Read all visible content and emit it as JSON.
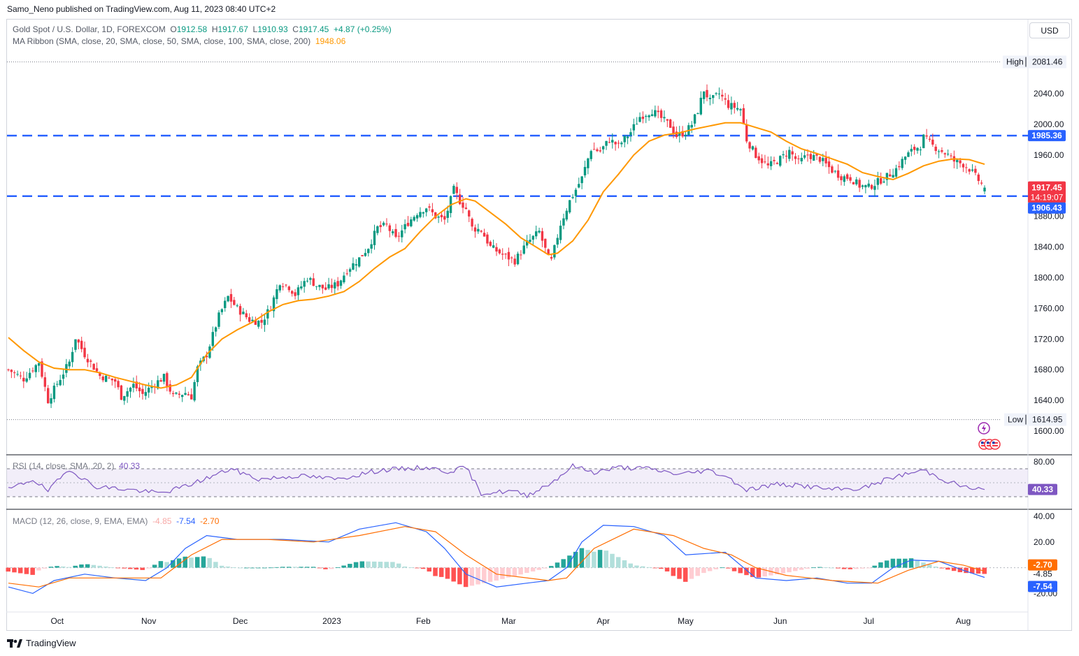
{
  "publisher": "Samo_Neno published on TradingView.com, Aug 11, 2023 08:40 UTC+2",
  "legend": {
    "symbol": "Gold Spot / U.S. Dollar, 1D, FOREXCOM",
    "o_label": "O",
    "o": "1912.58",
    "h_label": "H",
    "h": "1917.67",
    "l_label": "L",
    "l": "1910.93",
    "c_label": "C",
    "c": "1917.45",
    "change": "+4.87 (+0.25%)",
    "ma_name": "MA Ribbon (SMA, close, 20, SMA, close, 50, SMA, close, 100, SMA, close, 200)",
    "ma_value": "1948.06"
  },
  "currency": "USD",
  "rsi_legend": {
    "name": "RSI (14, close, SMA, 20, 2)",
    "value": "40.33"
  },
  "macd_legend": {
    "name": "MACD (12, 26, close, 9, EMA, EMA)",
    "hist": "-4.85",
    "macd": "-7.54",
    "signal": "-2.70"
  },
  "branding": "TradingView",
  "colors": {
    "up": "#089981",
    "down": "#f23645",
    "ma": "#ff9800",
    "hline": "#2962ff",
    "rsi": "#7e57c2",
    "macd": "#2962ff",
    "signal": "#ff6d00"
  },
  "chart_data": {
    "type": "candlestick",
    "price_axis": {
      "ticks": [
        2040,
        2000,
        1960,
        1920,
        1880,
        1840,
        1800,
        1760,
        1720,
        1680,
        1640,
        1600
      ],
      "ylim": [
        1590,
        2095
      ]
    },
    "time_axis": [
      "Oct",
      "Nov",
      "Dec",
      "2023",
      "Feb",
      "Mar",
      "Apr",
      "May",
      "Jun",
      "Jul",
      "Aug"
    ],
    "high": {
      "label": "High",
      "value": 2081.46
    },
    "low": {
      "label": "Low",
      "value": 1614.95
    },
    "horizontal_lines": [
      1985.36,
      1906.43
    ],
    "current_price": {
      "value": "1917.45",
      "countdown": "14:19:07"
    },
    "labels": {
      "high_line": "1985.36",
      "low_line": "1906.43",
      "high": "2081.46",
      "low": "1614.95"
    },
    "close_path": [
      [
        0,
        1680
      ],
      [
        5,
        1668
      ],
      [
        10,
        1690
      ],
      [
        13,
        1640
      ],
      [
        16,
        1662
      ],
      [
        20,
        1690
      ],
      [
        22,
        1722
      ],
      [
        25,
        1700
      ],
      [
        30,
        1672
      ],
      [
        35,
        1665
      ],
      [
        37,
        1645
      ],
      [
        41,
        1660
      ],
      [
        44,
        1648
      ],
      [
        48,
        1662
      ],
      [
        51,
        1670
      ],
      [
        54,
        1645
      ],
      [
        58,
        1650
      ],
      [
        60,
        1645
      ],
      [
        62,
        1682
      ],
      [
        65,
        1700
      ],
      [
        69,
        1750
      ],
      [
        72,
        1775
      ],
      [
        75,
        1760
      ],
      [
        79,
        1745
      ],
      [
        83,
        1742
      ],
      [
        86,
        1762
      ],
      [
        89,
        1795
      ],
      [
        92,
        1788
      ],
      [
        94,
        1778
      ],
      [
        98,
        1800
      ],
      [
        101,
        1790
      ],
      [
        104,
        1785
      ],
      [
        108,
        1792
      ],
      [
        111,
        1810
      ],
      [
        115,
        1825
      ],
      [
        118,
        1840
      ],
      [
        121,
        1865
      ],
      [
        124,
        1868
      ],
      [
        127,
        1850
      ],
      [
        131,
        1872
      ],
      [
        134,
        1885
      ],
      [
        137,
        1892
      ],
      [
        140,
        1880
      ],
      [
        143,
        1875
      ],
      [
        146,
        1915
      ],
      [
        148,
        1900
      ],
      [
        150,
        1890
      ],
      [
        152,
        1865
      ],
      [
        155,
        1862
      ],
      [
        158,
        1840
      ],
      [
        162,
        1830
      ],
      [
        166,
        1822
      ],
      [
        170,
        1845
      ],
      [
        174,
        1860
      ],
      [
        177,
        1825
      ],
      [
        178,
        1822
      ],
      [
        181,
        1870
      ],
      [
        184,
        1900
      ],
      [
        188,
        1930
      ],
      [
        191,
        1968
      ],
      [
        194,
        1965
      ],
      [
        197,
        1980
      ],
      [
        200,
        1972
      ],
      [
        204,
        1990
      ],
      [
        207,
        2010
      ],
      [
        211,
        2018
      ],
      [
        214,
        2008
      ],
      [
        217,
        1998
      ],
      [
        219,
        1985
      ],
      [
        222,
        1990
      ],
      [
        224,
        2000
      ],
      [
        226,
        2018
      ],
      [
        228,
        2045
      ],
      [
        230,
        2030
      ],
      [
        233,
        2040
      ],
      [
        236,
        2025
      ],
      [
        240,
        2020
      ],
      [
        242,
        1980
      ],
      [
        245,
        1960
      ],
      [
        249,
        1945
      ],
      [
        253,
        1955
      ],
      [
        256,
        1965
      ],
      [
        259,
        1950
      ],
      [
        262,
        1960
      ],
      [
        266,
        1955
      ],
      [
        270,
        1940
      ],
      [
        273,
        1932
      ],
      [
        276,
        1930
      ],
      [
        279,
        1920
      ],
      [
        282,
        1918
      ],
      [
        285,
        1925
      ],
      [
        288,
        1932
      ],
      [
        291,
        1942
      ],
      [
        294,
        1958
      ],
      [
        297,
        1968
      ],
      [
        299,
        1972
      ],
      [
        300,
        1983
      ],
      [
        303,
        1972
      ],
      [
        306,
        1965
      ],
      [
        308,
        1960
      ],
      [
        310,
        1952
      ],
      [
        313,
        1948
      ],
      [
        315,
        1942
      ],
      [
        317,
        1932
      ],
      [
        320,
        1917
      ]
    ],
    "ma20_path": [
      [
        0,
        1722
      ],
      [
        5,
        1705
      ],
      [
        10,
        1690
      ],
      [
        15,
        1682
      ],
      [
        20,
        1680
      ],
      [
        25,
        1680
      ],
      [
        30,
        1676
      ],
      [
        35,
        1670
      ],
      [
        40,
        1665
      ],
      [
        45,
        1660
      ],
      [
        50,
        1656
      ],
      [
        55,
        1660
      ],
      [
        60,
        1670
      ],
      [
        65,
        1700
      ],
      [
        70,
        1720
      ],
      [
        75,
        1732
      ],
      [
        80,
        1742
      ],
      [
        85,
        1755
      ],
      [
        90,
        1765
      ],
      [
        95,
        1770
      ],
      [
        100,
        1772
      ],
      [
        105,
        1776
      ],
      [
        110,
        1782
      ],
      [
        115,
        1795
      ],
      [
        120,
        1812
      ],
      [
        125,
        1827
      ],
      [
        130,
        1838
      ],
      [
        135,
        1860
      ],
      [
        140,
        1880
      ],
      [
        145,
        1895
      ],
      [
        150,
        1903
      ],
      [
        153,
        1900
      ],
      [
        158,
        1885
      ],
      [
        163,
        1870
      ],
      [
        168,
        1852
      ],
      [
        173,
        1840
      ],
      [
        177,
        1830
      ],
      [
        180,
        1832
      ],
      [
        185,
        1848
      ],
      [
        190,
        1875
      ],
      [
        195,
        1912
      ],
      [
        200,
        1935
      ],
      [
        205,
        1960
      ],
      [
        210,
        1978
      ],
      [
        215,
        1986
      ],
      [
        220,
        1989
      ],
      [
        225,
        1994
      ],
      [
        230,
        1998
      ],
      [
        235,
        2002
      ],
      [
        240,
        2002
      ],
      [
        245,
        1996
      ],
      [
        250,
        1990
      ],
      [
        255,
        1978
      ],
      [
        260,
        1968
      ],
      [
        265,
        1962
      ],
      [
        270,
        1955
      ],
      [
        275,
        1948
      ],
      [
        280,
        1937
      ],
      [
        285,
        1932
      ],
      [
        290,
        1928
      ],
      [
        295,
        1936
      ],
      [
        300,
        1946
      ],
      [
        305,
        1952
      ],
      [
        310,
        1955
      ],
      [
        315,
        1954
      ],
      [
        320,
        1948
      ]
    ],
    "rsi": {
      "value": 40.33,
      "ticks": [
        80
      ],
      "bands": [
        30,
        70
      ],
      "path": [
        [
          0,
          40
        ],
        [
          8,
          55
        ],
        [
          13,
          38
        ],
        [
          20,
          70
        ],
        [
          28,
          45
        ],
        [
          40,
          40
        ],
        [
          50,
          35
        ],
        [
          58,
          45
        ],
        [
          66,
          58
        ],
        [
          73,
          70
        ],
        [
          82,
          55
        ],
        [
          95,
          60
        ],
        [
          108,
          55
        ],
        [
          115,
          62
        ],
        [
          122,
          68
        ],
        [
          130,
          70
        ],
        [
          137,
          72
        ],
        [
          144,
          66
        ],
        [
          150,
          72
        ],
        [
          155,
          35
        ],
        [
          165,
          38
        ],
        [
          170,
          32
        ],
        [
          178,
          50
        ],
        [
          185,
          74
        ],
        [
          192,
          65
        ],
        [
          200,
          72
        ],
        [
          210,
          70
        ],
        [
          220,
          62
        ],
        [
          229,
          68
        ],
        [
          235,
          60
        ],
        [
          242,
          40
        ],
        [
          252,
          48
        ],
        [
          262,
          45
        ],
        [
          270,
          40
        ],
        [
          280,
          42
        ],
        [
          290,
          58
        ],
        [
          300,
          68
        ],
        [
          308,
          52
        ],
        [
          315,
          42
        ],
        [
          320,
          40.33
        ]
      ]
    },
    "macd": {
      "ticks": [
        40,
        20,
        -20
      ],
      "macd_value": -7.54,
      "signal_value": -2.7,
      "hist_value": -4.85,
      "macd_path": [
        [
          0,
          -15
        ],
        [
          8,
          -20
        ],
        [
          15,
          -10
        ],
        [
          25,
          -5
        ],
        [
          35,
          -8
        ],
        [
          45,
          -10
        ],
        [
          52,
          0
        ],
        [
          58,
          15
        ],
        [
          65,
          25
        ],
        [
          75,
          22
        ],
        [
          90,
          22
        ],
        [
          105,
          20
        ],
        [
          115,
          30
        ],
        [
          127,
          35
        ],
        [
          137,
          28
        ],
        [
          143,
          15
        ],
        [
          150,
          -5
        ],
        [
          160,
          -15
        ],
        [
          170,
          -12
        ],
        [
          177,
          -10
        ],
        [
          183,
          0
        ],
        [
          188,
          20
        ],
        [
          195,
          33
        ],
        [
          205,
          32
        ],
        [
          215,
          25
        ],
        [
          222,
          10
        ],
        [
          235,
          12
        ],
        [
          245,
          -8
        ],
        [
          255,
          -10
        ],
        [
          265,
          -8
        ],
        [
          275,
          -12
        ],
        [
          283,
          -12
        ],
        [
          290,
          0
        ],
        [
          296,
          6
        ],
        [
          305,
          5
        ],
        [
          313,
          -2
        ],
        [
          320,
          -7.54
        ]
      ],
      "signal_path": [
        [
          0,
          -12
        ],
        [
          10,
          -15
        ],
        [
          20,
          -8
        ],
        [
          35,
          -8
        ],
        [
          50,
          -8
        ],
        [
          60,
          10
        ],
        [
          70,
          22
        ],
        [
          85,
          22
        ],
        [
          100,
          20
        ],
        [
          115,
          25
        ],
        [
          130,
          32
        ],
        [
          140,
          28
        ],
        [
          150,
          10
        ],
        [
          160,
          -5
        ],
        [
          177,
          -10
        ],
        [
          183,
          -8
        ],
        [
          192,
          15
        ],
        [
          205,
          30
        ],
        [
          218,
          25
        ],
        [
          228,
          15
        ],
        [
          237,
          10
        ],
        [
          245,
          0
        ],
        [
          255,
          -6
        ],
        [
          270,
          -10
        ],
        [
          285,
          -12
        ],
        [
          295,
          -2
        ],
        [
          305,
          5
        ],
        [
          313,
          2
        ],
        [
          320,
          -2.7
        ]
      ]
    }
  }
}
